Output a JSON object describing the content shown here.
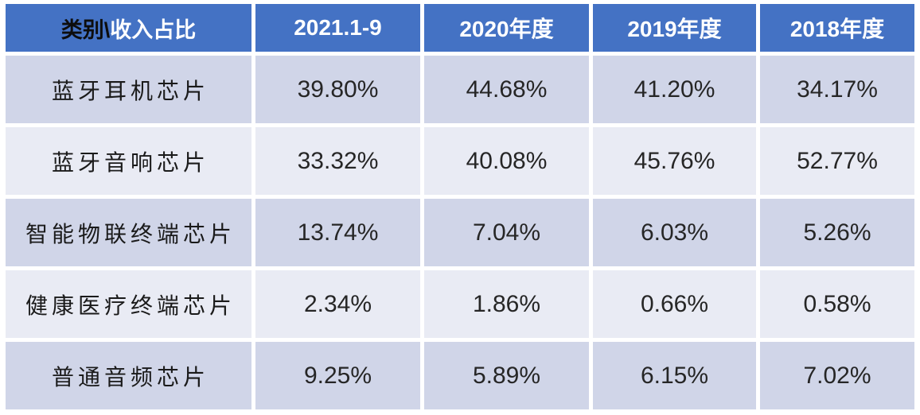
{
  "colors": {
    "header_bg": "#4472C4",
    "band_dark": "#D0D5E8",
    "band_light": "#E9EBF4",
    "header_text": "#FFFFFF",
    "corner_black_text": "#0D0D0D",
    "body_text": "#262626",
    "gridline": "#FFFFFF"
  },
  "table": {
    "header": {
      "corner_black": "类别\\",
      "corner_white": "收入占比",
      "columns": [
        "2021.1-9",
        "2020年度",
        "2019年度",
        "2018年度"
      ]
    },
    "rows": [
      {
        "category": "蓝牙耳机芯片",
        "values": [
          "39.80%",
          "44.68%",
          "41.20%",
          "34.17%"
        ]
      },
      {
        "category": "蓝牙音响芯片",
        "values": [
          "33.32%",
          "40.08%",
          "45.76%",
          "52.77%"
        ]
      },
      {
        "category": "智能物联终端芯片",
        "values": [
          "13.74%",
          "7.04%",
          "6.03%",
          "5.26%"
        ]
      },
      {
        "category": "健康医疗终端芯片",
        "values": [
          "2.34%",
          "1.86%",
          "0.66%",
          "0.58%"
        ]
      },
      {
        "category": "普通音频芯片",
        "values": [
          "9.25%",
          "5.89%",
          "6.15%",
          "7.02%"
        ]
      }
    ]
  },
  "chart_data": {
    "type": "table",
    "corner_label": "类别\\收入占比",
    "columns": [
      "2021.1-9",
      "2020年度",
      "2019年度",
      "2018年度"
    ],
    "row_labels": [
      "蓝牙耳机芯片",
      "蓝牙音响芯片",
      "智能物联终端芯片",
      "健康医疗终端芯片",
      "普通音频芯片"
    ],
    "values_percent": [
      [
        39.8,
        44.68,
        41.2,
        34.17
      ],
      [
        33.32,
        40.08,
        45.76,
        52.77
      ],
      [
        13.74,
        7.04,
        6.03,
        5.26
      ],
      [
        2.34,
        1.86,
        0.66,
        0.58
      ],
      [
        9.25,
        5.89,
        6.15,
        7.02
      ]
    ]
  }
}
